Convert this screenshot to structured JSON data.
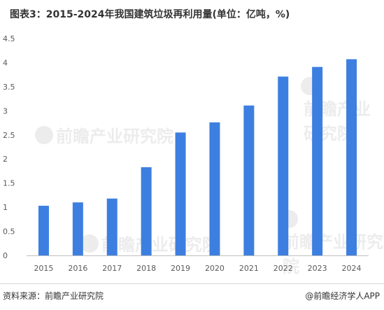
{
  "title": "图表3：2015-2024年我国建筑垃圾再利用量(单位：亿吨，%)",
  "source": "资料来源：前瞻产业研究院",
  "credit": "@前瞻经济学人APP",
  "watermark": "前瞻产业研究院",
  "colors": {
    "bar": "#3d7fe0",
    "grid": "#e6e6e6",
    "axis": "#bfbfbf"
  },
  "chart_data": {
    "type": "bar",
    "categories": [
      "2015",
      "2016",
      "2017",
      "2018",
      "2019",
      "2020",
      "2021",
      "2022",
      "2023",
      "2024"
    ],
    "values": [
      1.03,
      1.1,
      1.18,
      1.83,
      2.55,
      2.76,
      3.11,
      3.71,
      3.91,
      4.07
    ],
    "ylim": [
      0,
      4.5
    ],
    "yticks": [
      "0",
      "0.5",
      "1",
      "1.5",
      "2",
      "2.5",
      "3",
      "3.5",
      "4",
      "4.5"
    ],
    "grid": false,
    "legend": "none"
  }
}
